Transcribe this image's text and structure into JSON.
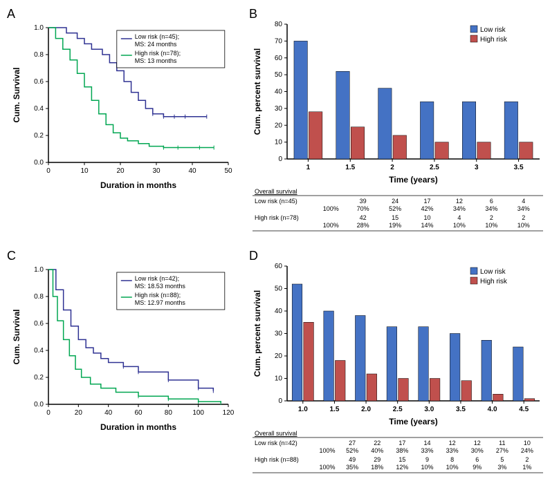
{
  "panelA": {
    "label": "A",
    "type": "kaplan-meier",
    "xlabel": "Duration in months",
    "ylabel": "Cum. Survival",
    "xlim": [
      0,
      50
    ],
    "ylim": [
      0,
      1.0
    ],
    "xticks": [
      0,
      10,
      20,
      30,
      40,
      50
    ],
    "yticks": [
      0.0,
      0.2,
      0.4,
      0.6,
      0.8,
      1.0
    ],
    "legend": {
      "low": "Low risk (n=45);\nMS: 24 months",
      "high": "High risk (n=78);\nMS: 13 months"
    },
    "colors": {
      "low": "#2e3192",
      "high": "#00a651",
      "axis": "#000000",
      "grid": "#cccccc"
    },
    "series": {
      "low": [
        [
          0,
          1.0
        ],
        [
          3,
          1.0
        ],
        [
          5,
          0.96
        ],
        [
          8,
          0.92
        ],
        [
          10,
          0.88
        ],
        [
          12,
          0.84
        ],
        [
          15,
          0.8
        ],
        [
          17,
          0.74
        ],
        [
          19,
          0.68
        ],
        [
          21,
          0.6
        ],
        [
          23,
          0.52
        ],
        [
          25,
          0.46
        ],
        [
          27,
          0.4
        ],
        [
          29,
          0.36
        ],
        [
          32,
          0.34
        ],
        [
          35,
          0.34
        ],
        [
          38,
          0.34
        ],
        [
          44,
          0.34
        ]
      ],
      "high": [
        [
          0,
          1.0
        ],
        [
          2,
          0.92
        ],
        [
          4,
          0.84
        ],
        [
          6,
          0.76
        ],
        [
          8,
          0.66
        ],
        [
          10,
          0.56
        ],
        [
          12,
          0.46
        ],
        [
          14,
          0.36
        ],
        [
          16,
          0.28
        ],
        [
          18,
          0.22
        ],
        [
          20,
          0.18
        ],
        [
          22,
          0.16
        ],
        [
          25,
          0.14
        ],
        [
          28,
          0.12
        ],
        [
          32,
          0.11
        ],
        [
          36,
          0.11
        ],
        [
          42,
          0.11
        ],
        [
          46,
          0.11
        ]
      ]
    }
  },
  "panelB": {
    "label": "B",
    "type": "bar",
    "xlabel": "Time (years)",
    "ylabel": "Cum. percent survival",
    "xlim": [
      0.5,
      3.9
    ],
    "ylim": [
      0,
      80
    ],
    "yticks": [
      0,
      10,
      20,
      30,
      40,
      50,
      60,
      70,
      80
    ],
    "categories": [
      "1",
      "1.5",
      "2",
      "2.5",
      "3",
      "3.5"
    ],
    "series": {
      "low": {
        "label": "Low risk",
        "color": "#4472c4",
        "values": [
          70,
          52,
          42,
          34,
          34,
          34
        ]
      },
      "high": {
        "label": "High risk",
        "color": "#c0504d",
        "values": [
          28,
          19,
          14,
          10,
          10,
          10
        ]
      }
    },
    "table": {
      "title": "Overall survival",
      "rows": [
        {
          "label": "Low risk (n=45)",
          "counts": [
            "39",
            "24",
            "17",
            "12",
            "6",
            "4"
          ],
          "pcts": [
            "100%",
            "70%",
            "52%",
            "42%",
            "34%",
            "34%",
            "34%"
          ]
        },
        {
          "label": "High risk (n=78)",
          "counts": [
            "42",
            "15",
            "10",
            "4",
            "2",
            "2"
          ],
          "pcts": [
            "100%",
            "28%",
            "19%",
            "14%",
            "10%",
            "10%",
            "10%"
          ]
        }
      ]
    }
  },
  "panelC": {
    "label": "C",
    "type": "kaplan-meier",
    "xlabel": "Duration in months",
    "ylabel": "Cum. Survival",
    "xlim": [
      0,
      120
    ],
    "ylim": [
      0,
      1.0
    ],
    "xticks": [
      0,
      20,
      40,
      60,
      80,
      100,
      120
    ],
    "yticks": [
      0.0,
      0.2,
      0.4,
      0.6,
      0.8,
      1.0
    ],
    "legend": {
      "low": "Low risk (n=42);\nMS: 18.53 months",
      "high": "High risk (n=88);\nMS: 12.97 months"
    },
    "colors": {
      "low": "#2e3192",
      "high": "#00a651",
      "axis": "#000000"
    },
    "series": {
      "low": [
        [
          0,
          1.0
        ],
        [
          5,
          0.85
        ],
        [
          10,
          0.7
        ],
        [
          15,
          0.58
        ],
        [
          20,
          0.48
        ],
        [
          25,
          0.42
        ],
        [
          30,
          0.38
        ],
        [
          35,
          0.34
        ],
        [
          40,
          0.31
        ],
        [
          50,
          0.28
        ],
        [
          60,
          0.24
        ],
        [
          80,
          0.18
        ],
        [
          100,
          0.12
        ],
        [
          110,
          0.1
        ]
      ],
      "high": [
        [
          0,
          1.0
        ],
        [
          3,
          0.8
        ],
        [
          6,
          0.62
        ],
        [
          10,
          0.48
        ],
        [
          14,
          0.36
        ],
        [
          18,
          0.26
        ],
        [
          22,
          0.2
        ],
        [
          28,
          0.15
        ],
        [
          35,
          0.12
        ],
        [
          45,
          0.09
        ],
        [
          60,
          0.06
        ],
        [
          80,
          0.04
        ],
        [
          100,
          0.02
        ],
        [
          115,
          0.01
        ]
      ]
    }
  },
  "panelD": {
    "label": "D",
    "type": "bar",
    "xlabel": "Time (years)",
    "ylabel": "Cum. percent survival",
    "xlim": [
      0.5,
      5.0
    ],
    "ylim": [
      0,
      60
    ],
    "yticks": [
      0,
      10,
      20,
      30,
      40,
      50,
      60
    ],
    "categories": [
      "1.0",
      "1.5",
      "2.0",
      "2.5",
      "3.0",
      "3.5",
      "4.0",
      "4.5"
    ],
    "series": {
      "low": {
        "label": "Low risk",
        "color": "#4472c4",
        "values": [
          52,
          40,
          38,
          33,
          33,
          30,
          27,
          24
        ]
      },
      "high": {
        "label": "High risk",
        "color": "#c0504d",
        "values": [
          35,
          18,
          12,
          10,
          10,
          9,
          3,
          1
        ]
      }
    },
    "table": {
      "title": "Overall survival",
      "rows": [
        {
          "label": "Low risk (n=42)",
          "counts": [
            "27",
            "22",
            "17",
            "14",
            "12",
            "12",
            "11",
            "10"
          ],
          "pcts": [
            "100%",
            "52%",
            "40%",
            "38%",
            "33%",
            "33%",
            "30%",
            "27%",
            "24%"
          ]
        },
        {
          "label": "High risk (n=88)",
          "counts": [
            "49",
            "29",
            "15",
            "9",
            "8",
            "6",
            "5",
            "2"
          ],
          "pcts": [
            "100%",
            "35%",
            "18%",
            "12%",
            "10%",
            "10%",
            "9%",
            "3%",
            "1%"
          ]
        }
      ]
    }
  },
  "style": {
    "background": "#ffffff",
    "axis_fontsize": 12,
    "tick_fontsize": 10,
    "legend_fontsize": 10,
    "panel_label_fontsize": 18
  }
}
